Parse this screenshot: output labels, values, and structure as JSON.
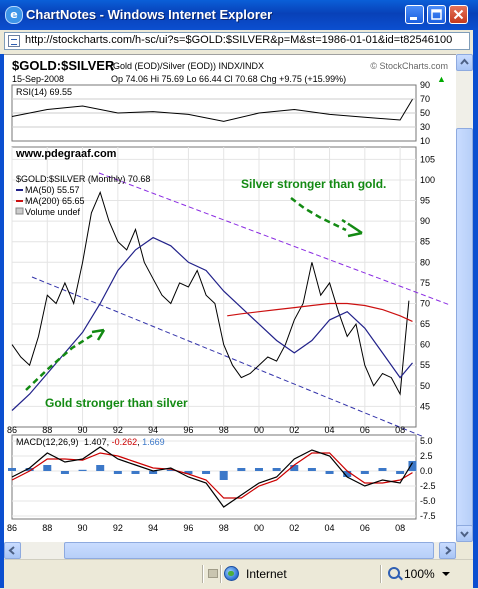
{
  "window": {
    "title": "ChartNotes - Windows Internet Explorer",
    "address": "http://stockcharts.com/h-sc/ui?s=$GOLD:$SILVER&p=M&st=1986-01-01&id=t82546100"
  },
  "header": {
    "symbol": "$GOLD:$SILVER",
    "description": "(Gold (EOD)/Silver (EOD))  INDX/INDX",
    "copyright": "© StockCharts.com",
    "date": "15-Sep-2008",
    "quote": "Op 74.06  Hi 75.69  Lo 66.44  Cl 70.68  Chg +9.75 (+15.99%)",
    "quote_up_arrow": "▲"
  },
  "rsi": {
    "label": "RSI(14) 69.55",
    "ticks": [
      "90",
      "70",
      "50",
      "30",
      "10"
    ]
  },
  "watermark": "www.pdegraaf.com",
  "price": {
    "legend_main": "$GOLD:$SILVER (Monthly) 70.68",
    "legend_ma50": "MA(50) 55.57",
    "legend_ma200": "MA(200) 65.65",
    "legend_volume": "Volume undef",
    "ticks": [
      "105",
      "100",
      "95",
      "90",
      "85",
      "80",
      "75",
      "70",
      "65",
      "60",
      "55",
      "50",
      "45"
    ],
    "annotation_top": "Silver stronger than gold.",
    "annotation_bottom": "Gold stronger than silver",
    "x_labels": [
      "86",
      "88",
      "90",
      "92",
      "94",
      "96",
      "98",
      "00",
      "02",
      "04",
      "06",
      "08"
    ]
  },
  "macd": {
    "label_name": "MACD(12,26,9)",
    "label_macd": "1.407",
    "label_signal": "-0.262",
    "label_hist": "1.669",
    "ticks": [
      "5.0",
      "2.5",
      "0.0",
      "-2.5",
      "-5.0",
      "-7.5"
    ],
    "x_labels": [
      "86",
      "88",
      "90",
      "92",
      "94",
      "96",
      "98",
      "00",
      "02",
      "04",
      "06",
      "08"
    ]
  },
  "colors": {
    "ma50": "#22228a",
    "ma200": "#cc1111",
    "price": "#000000",
    "channel": "#8a2be2",
    "annotation": "#138a13",
    "macd_hist": "#3c78c8",
    "signal": "#cc0000"
  },
  "chart_data": [
    {
      "type": "line",
      "title": "$GOLD:$SILVER (Monthly)",
      "series": [
        {
          "name": "$GOLD:$SILVER",
          "x": [
            1986,
            1986.5,
            1987,
            1987.5,
            1988,
            1988.5,
            1989,
            1989.5,
            1990,
            1990.5,
            1991,
            1991.5,
            1992,
            1992.5,
            1993,
            1993.5,
            1994,
            1994.5,
            1995,
            1995.5,
            1996,
            1996.5,
            1997,
            1997.5,
            1998,
            1998.5,
            1999,
            1999.5,
            2000,
            2000.5,
            2001,
            2001.5,
            2002,
            2002.5,
            2003,
            2003.5,
            2004,
            2004.5,
            2005,
            2005.5,
            2006,
            2006.5,
            2007,
            2007.5,
            2008,
            2008.5
          ],
          "values": [
            60,
            57,
            55,
            62,
            72,
            70,
            75,
            70,
            80,
            92,
            97,
            90,
            85,
            83,
            88,
            80,
            76,
            72,
            70,
            75,
            74,
            78,
            72,
            70,
            60,
            55,
            52,
            53,
            55,
            57,
            56,
            60,
            66,
            70,
            80,
            72,
            75,
            68,
            62,
            65,
            55,
            50,
            53,
            52,
            48,
            70.68
          ]
        },
        {
          "name": "MA(50)",
          "x": [
            1986,
            1987,
            1988,
            1989,
            1990,
            1991,
            1992,
            1993,
            1994,
            1995,
            1996,
            1997,
            1998,
            1999,
            2000,
            2001,
            2002,
            2003,
            2004,
            2005,
            2006,
            2007,
            2008,
            2008.7
          ],
          "values": [
            44,
            48,
            53,
            58,
            63,
            70,
            78,
            83,
            86,
            84,
            80,
            78,
            73,
            69,
            65,
            61,
            58,
            61,
            66,
            68,
            64,
            58,
            52,
            55.57
          ]
        },
        {
          "name": "MA(200)",
          "x": [
            1998.2,
            1999,
            2000,
            2001,
            2002,
            2003,
            2004,
            2005,
            2006,
            2007,
            2008,
            2008.7
          ],
          "values": [
            67,
            67.5,
            68,
            68.5,
            69,
            69.5,
            70,
            70,
            69.5,
            68.5,
            67,
            65.65
          ]
        }
      ],
      "ylim": [
        40,
        108
      ],
      "x_ticks": [
        "86",
        "88",
        "90",
        "92",
        "94",
        "96",
        "98",
        "00",
        "02",
        "04",
        "06",
        "08"
      ],
      "annotations": [
        "Silver stronger than gold.",
        "Gold stronger than silver"
      ]
    },
    {
      "type": "line",
      "title": "RSI(14)",
      "series": [
        {
          "name": "RSI(14)",
          "x": [
            1986,
            1988,
            1990,
            1992,
            1994,
            1996,
            1998,
            2000,
            2002,
            2004,
            2006,
            2008,
            2008.7
          ],
          "values": [
            45,
            55,
            60,
            50,
            52,
            48,
            38,
            50,
            55,
            48,
            44,
            40,
            69.55
          ]
        }
      ],
      "ylim": [
        10,
        90
      ]
    },
    {
      "type": "line",
      "title": "MACD(12,26,9)",
      "series": [
        {
          "name": "MACD",
          "x": [
            1986,
            1987,
            1988,
            1989,
            1990,
            1991,
            1992,
            1993,
            1994,
            1995,
            1996,
            1997,
            1998,
            1999,
            2000,
            2001,
            2002,
            2003,
            2004,
            2005,
            2006,
            2007,
            2008,
            2008.7
          ],
          "values": [
            -1,
            0.5,
            3,
            1.5,
            2,
            4,
            2,
            1,
            0,
            0.5,
            -1,
            -2,
            -6,
            -4,
            -2,
            -1,
            2,
            3.5,
            2.5,
            -1,
            -2.5,
            -1.5,
            -2,
            1.407
          ]
        },
        {
          "name": "Signal",
          "x": [
            1986,
            1987,
            1988,
            1989,
            1990,
            1991,
            1992,
            1993,
            1994,
            1995,
            1996,
            1997,
            1998,
            1999,
            2000,
            2001,
            2002,
            2003,
            2004,
            2005,
            2006,
            2007,
            2008,
            2008.7
          ],
          "values": [
            -1.5,
            0,
            2,
            2,
            1.8,
            3,
            2.5,
            1.5,
            0.5,
            0.3,
            -0.5,
            -1.5,
            -4.5,
            -4.5,
            -2.5,
            -1.5,
            1,
            3,
            3,
            0,
            -2,
            -2,
            -1.5,
            -0.262
          ]
        }
      ],
      "ylim": [
        -8,
        6
      ]
    }
  ]
}
